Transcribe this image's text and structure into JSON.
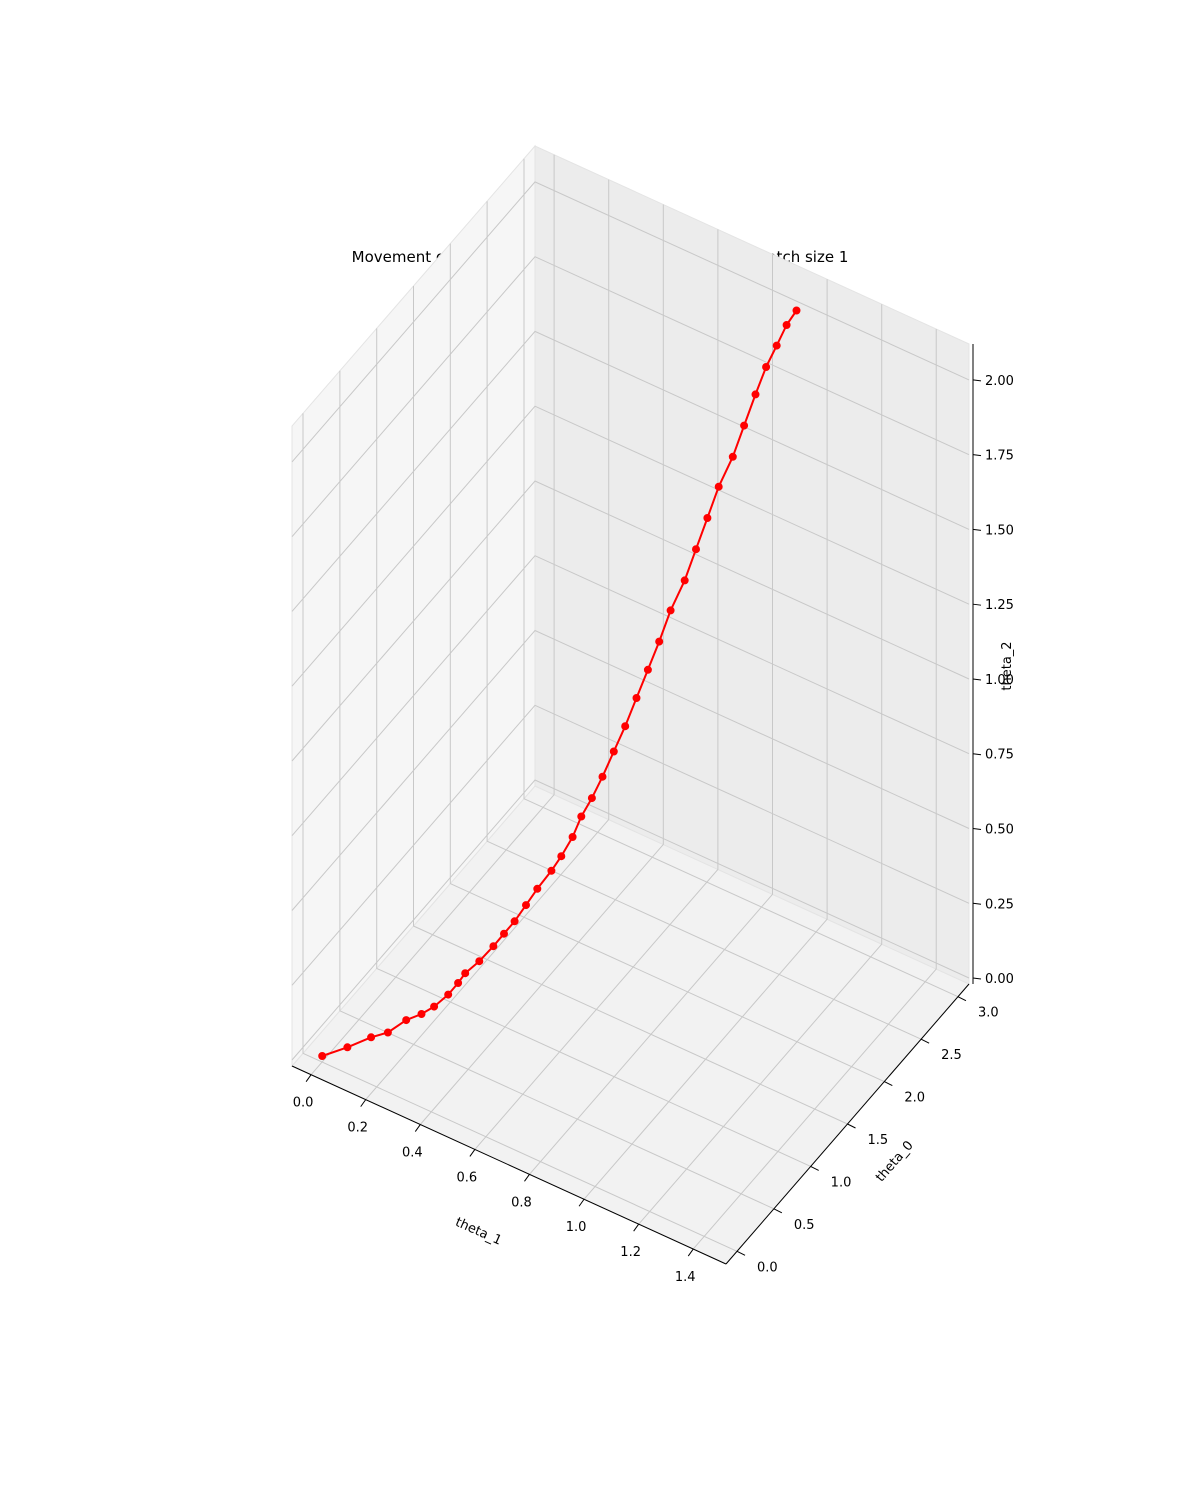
{
  "chart_data": {
    "type": "scatter",
    "projection": "3d",
    "title": "Movement of parameters at each iteration of SGD for batch size 1",
    "grid": true,
    "axes": {
      "x": {
        "label": "theta_1",
        "ticks": [
          "0.0",
          "0.2",
          "0.4",
          "0.6",
          "0.8",
          "1.0",
          "1.2",
          "1.4"
        ],
        "tick_values": [
          0,
          0.2,
          0.4,
          0.6,
          0.8,
          1.0,
          1.2,
          1.4
        ],
        "range": [
          -0.07,
          1.52
        ]
      },
      "y": {
        "label": "theta_0",
        "ticks": [
          "0.0",
          "0.5",
          "1.0",
          "1.5",
          "2.0",
          "2.5",
          "3.0"
        ],
        "tick_values": [
          0,
          0.5,
          1.0,
          1.5,
          2.0,
          2.5,
          3.0
        ],
        "range": [
          -0.15,
          3.15
        ]
      },
      "z": {
        "label": "theta_2",
        "ticks": [
          "0.00",
          "0.25",
          "0.50",
          "0.75",
          "1.00",
          "1.25",
          "1.50",
          "1.75",
          "2.00"
        ],
        "tick_values": [
          0,
          0.25,
          0.5,
          0.75,
          1.0,
          1.25,
          1.5,
          1.75,
          2.0
        ],
        "range": [
          -0.02,
          2.12
        ]
      }
    },
    "series": [
      {
        "marker": "o",
        "line": true,
        "color": "#ff0000",
        "note": "path of (theta_1, theta_0, theta_2) over SGD iterations",
        "points": [
          [
            0.0,
            0.0,
            0.0
          ],
          [
            0.06,
            0.12,
            0.02
          ],
          [
            0.12,
            0.22,
            0.05
          ],
          [
            0.16,
            0.3,
            0.06
          ],
          [
            0.2,
            0.4,
            0.09
          ],
          [
            0.24,
            0.46,
            0.11
          ],
          [
            0.27,
            0.52,
            0.13
          ],
          [
            0.3,
            0.6,
            0.16
          ],
          [
            0.32,
            0.66,
            0.19
          ],
          [
            0.33,
            0.72,
            0.21
          ],
          [
            0.36,
            0.8,
            0.24
          ],
          [
            0.39,
            0.88,
            0.28
          ],
          [
            0.41,
            0.95,
            0.31
          ],
          [
            0.43,
            1.02,
            0.34
          ],
          [
            0.45,
            1.1,
            0.38
          ],
          [
            0.47,
            1.18,
            0.42
          ],
          [
            0.5,
            1.26,
            0.47
          ],
          [
            0.52,
            1.32,
            0.51
          ],
          [
            0.54,
            1.4,
            0.56
          ],
          [
            0.55,
            1.48,
            0.61
          ],
          [
            0.57,
            1.55,
            0.66
          ],
          [
            0.59,
            1.62,
            0.72
          ],
          [
            0.61,
            1.7,
            0.79
          ],
          [
            0.63,
            1.78,
            0.86
          ],
          [
            0.65,
            1.86,
            0.94
          ],
          [
            0.67,
            1.94,
            1.02
          ],
          [
            0.69,
            2.02,
            1.1
          ],
          [
            0.71,
            2.1,
            1.19
          ],
          [
            0.74,
            2.18,
            1.28
          ],
          [
            0.76,
            2.26,
            1.37
          ],
          [
            0.78,
            2.34,
            1.46
          ],
          [
            0.8,
            2.42,
            1.55
          ],
          [
            0.83,
            2.5,
            1.64
          ],
          [
            0.85,
            2.58,
            1.73
          ],
          [
            0.87,
            2.66,
            1.82
          ],
          [
            0.89,
            2.73,
            1.9
          ],
          [
            0.91,
            2.8,
            1.96
          ],
          [
            0.93,
            2.86,
            2.02
          ],
          [
            0.95,
            2.92,
            2.06
          ]
        ]
      }
    ]
  }
}
